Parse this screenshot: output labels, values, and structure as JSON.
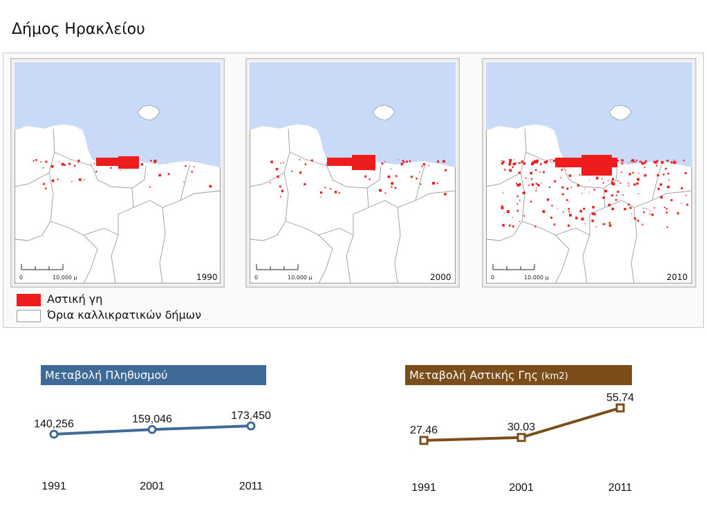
{
  "page": {
    "title": "Δήμος Ηρακλείου"
  },
  "maps": [
    {
      "year": "1990",
      "scale_start": "0",
      "scale_end": "10.000",
      "scale_unit": "μ"
    },
    {
      "year": "2000",
      "scale_start": "0",
      "scale_end": "10.000",
      "scale_unit": "μ"
    },
    {
      "year": "2010",
      "scale_start": "0",
      "scale_end": "10.000",
      "scale_unit": "μ"
    }
  ],
  "legend": {
    "urban": {
      "label": "Αστική γη",
      "color": "#ee1c1c"
    },
    "boundaries": {
      "label": "Όρια καλλικρατικών δήμων",
      "color": "#ffffff"
    }
  },
  "colors": {
    "sea": "#c9daf8",
    "land": "#ffffff",
    "boundary": "#9a9a9a",
    "population": "#3d6a96",
    "urban_land": "#7a4d1a"
  },
  "chart_data": [
    {
      "type": "line",
      "title": "Μεταβολή Πληθυσμού",
      "x": [
        "1991",
        "2001",
        "2011"
      ],
      "values": [
        140256,
        159046,
        173450
      ],
      "value_labels": [
        "140,256",
        "159,046",
        "173,450"
      ],
      "marker": "circle"
    },
    {
      "type": "line",
      "title": "Μεταβολή Αστικής Γης",
      "title_unit": "(km2)",
      "x": [
        "1991",
        "2001",
        "2011"
      ],
      "values": [
        27.46,
        30.03,
        55.74
      ],
      "value_labels": [
        "27.46",
        "30.03",
        "55.74"
      ],
      "marker": "square"
    }
  ]
}
